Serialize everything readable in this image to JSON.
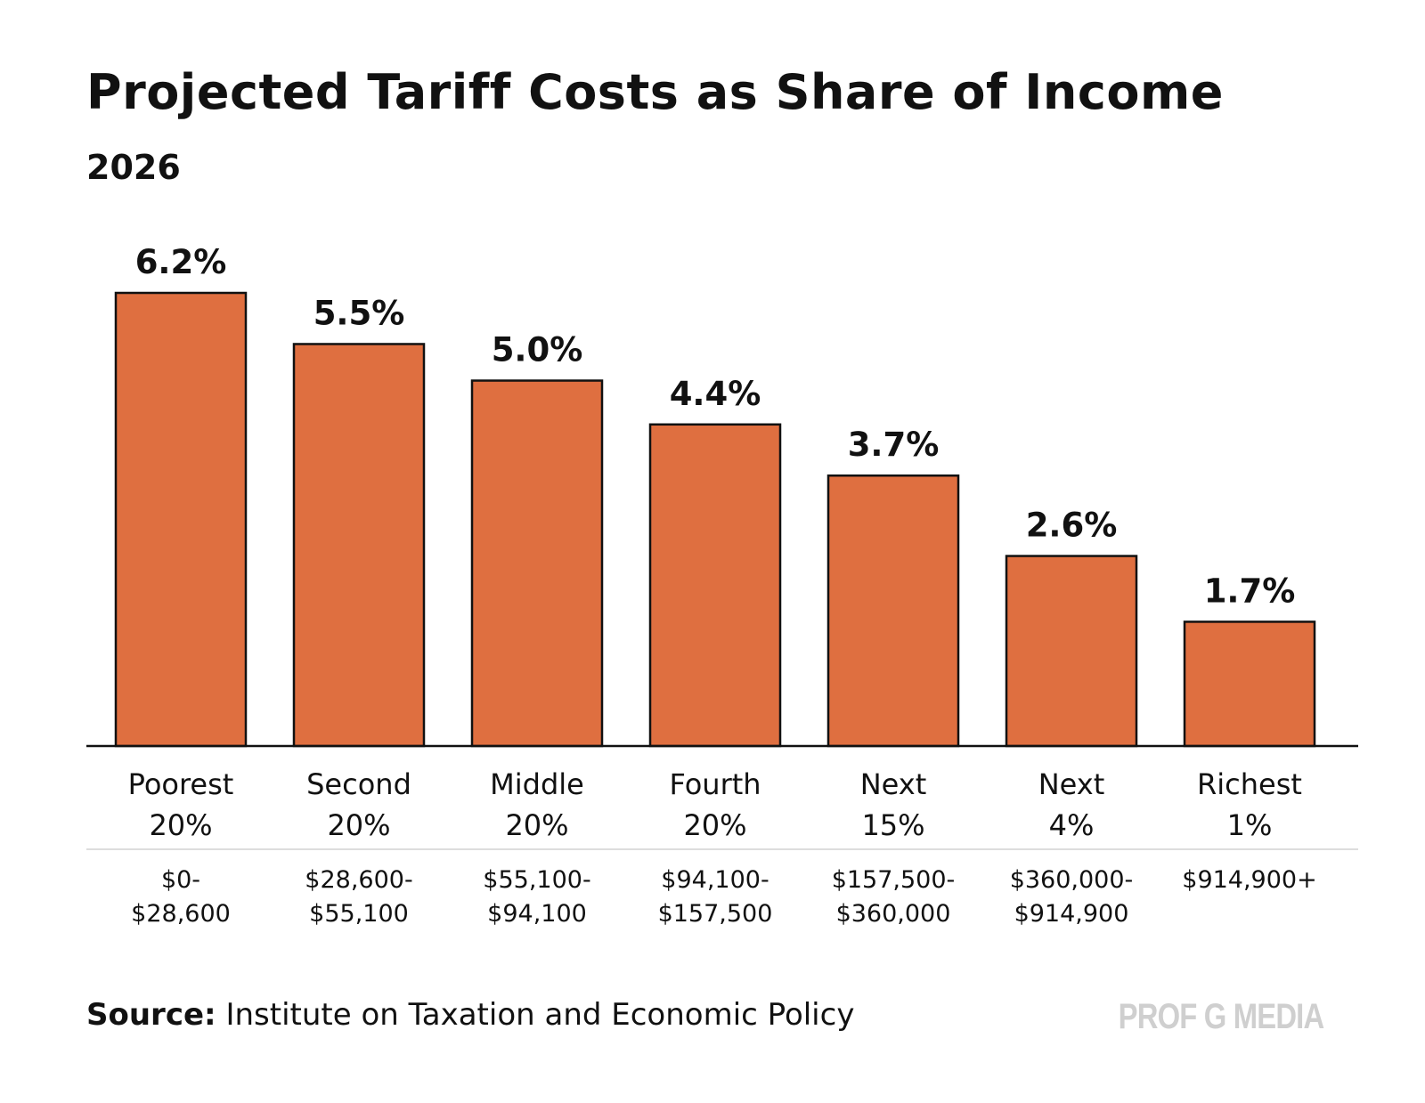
{
  "chart_data": {
    "type": "bar",
    "title": "Projected Tariff Costs as Share of Income",
    "subtitle": "2026",
    "categories": [
      "Poorest 20%",
      "Second 20%",
      "Middle 20%",
      "Fourth 20%",
      "Next 15%",
      "Next 4%",
      "Richest 1%"
    ],
    "category_lines": [
      [
        "Poorest",
        "20%"
      ],
      [
        "Second",
        "20%"
      ],
      [
        "Middle",
        "20%"
      ],
      [
        "Fourth",
        "20%"
      ],
      [
        "Next",
        "15%"
      ],
      [
        "Next",
        "4%"
      ],
      [
        "Richest",
        "1%"
      ]
    ],
    "income_ranges": [
      [
        "$0-",
        "$28,600"
      ],
      [
        "$28,600-",
        "$55,100"
      ],
      [
        "$55,100-",
        "$94,100"
      ],
      [
        "$94,100-",
        "$157,500"
      ],
      [
        "$157,500-",
        "$360,000"
      ],
      [
        "$360,000-",
        "$914,900"
      ],
      [
        "$914,900+"
      ]
    ],
    "values": [
      6.2,
      5.5,
      5.0,
      4.4,
      3.7,
      2.6,
      1.7
    ],
    "data_labels": [
      "6.2%",
      "5.5%",
      "5.0%",
      "4.4%",
      "3.7%",
      "2.6%",
      "1.7%"
    ],
    "value_unit": "%",
    "ylim": [
      0,
      6.2
    ],
    "xlabel": "",
    "ylabel": "",
    "grid": false,
    "legend": "none",
    "bar_color": "#df6f40",
    "bar_outline_color": "#111111"
  },
  "footer": {
    "source_label": "Source:",
    "source_text": " Institute on Taxation and Economic Policy",
    "brand": "PROF G MEDIA"
  }
}
